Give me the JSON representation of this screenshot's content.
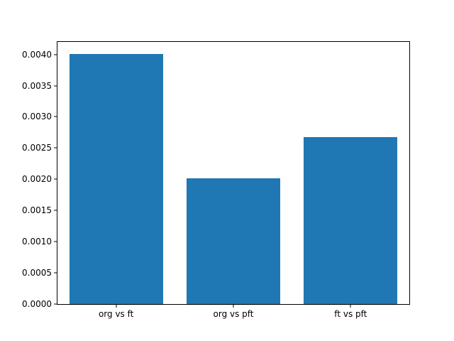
{
  "chart_data": {
    "type": "bar",
    "title": "",
    "xlabel": "",
    "ylabel": "",
    "categories": [
      "org vs ft",
      "org vs pft",
      "ft vs pft"
    ],
    "values": [
      0.00401,
      0.00202,
      0.00268
    ],
    "ylim": [
      0.0,
      0.0042
    ],
    "yticks": [
      0.0,
      0.0005,
      0.001,
      0.0015,
      0.002,
      0.0025,
      0.003,
      0.0035,
      0.004
    ],
    "ytick_labels": [
      "0.0000",
      "0.0005",
      "0.0010",
      "0.0015",
      "0.0020",
      "0.0025",
      "0.0030",
      "0.0035",
      "0.0040"
    ],
    "bar_color": "#1f77b4",
    "bar_width_fraction": 0.8,
    "grid": false,
    "legend": null,
    "background_color": "#ffffff",
    "spine_color": "#000000"
  }
}
